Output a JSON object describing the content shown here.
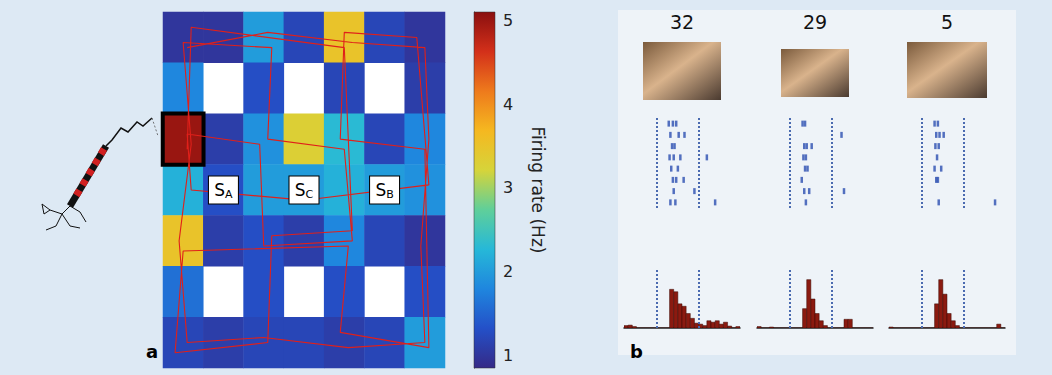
{
  "chart_data": [
    {
      "type": "heatmap",
      "label": "a",
      "tick_labels": false,
      "cells": [
        [
          1.0,
          1.0,
          2.0,
          1.2,
          3.5,
          1.2,
          1.0
        ],
        [
          1.8,
          null,
          1.3,
          null,
          1.2,
          null,
          1.1
        ],
        [
          5.0,
          1.1,
          1.9,
          3.3,
          2.3,
          1.2,
          1.8
        ],
        [
          2.2,
          1.3,
          2.0,
          2.0,
          2.2,
          2.0,
          1.9
        ],
        [
          3.5,
          1.1,
          1.3,
          1.1,
          1.8,
          1.2,
          1.0
        ],
        [
          1.6,
          null,
          1.3,
          null,
          1.3,
          null,
          1.3
        ],
        [
          1.2,
          1.1,
          1.2,
          1.2,
          1.1,
          1.2,
          2.0
        ]
      ],
      "colorbar": {
        "title": "Firing rate (Hz)",
        "range": [
          0.85,
          5.1
        ],
        "ticks": [
          1,
          2,
          3,
          4,
          5
        ]
      },
      "trajectory": {
        "color": "#e0201a",
        "points": [
          [
            0.1,
            0.2
          ],
          [
            2.1,
            -0.1
          ],
          [
            4.2,
            0.1
          ],
          [
            6.0,
            0.2
          ],
          [
            6.1,
            2.0
          ],
          [
            5.9,
            4.1
          ],
          [
            6.0,
            6.0
          ],
          [
            4.1,
            6.1
          ],
          [
            2.0,
            5.9
          ],
          [
            0.1,
            6.0
          ],
          [
            -0.1,
            4.0
          ],
          [
            0.2,
            2.1
          ],
          [
            0.0,
            0.1
          ],
          [
            2.2,
            0.2
          ],
          [
            2.1,
            2.0
          ],
          [
            4.0,
            2.2
          ],
          [
            4.2,
            4.0
          ],
          [
            2.0,
            4.1
          ],
          [
            1.9,
            2.1
          ],
          [
            0.1,
            1.9
          ],
          [
            0.2,
            3.0
          ],
          [
            3.0,
            3.2
          ],
          [
            6.1,
            2.9
          ],
          [
            5.8,
            0.0
          ],
          [
            4.0,
            -0.1
          ],
          [
            3.9,
            2.0
          ],
          [
            6.0,
            2.2
          ],
          [
            6.1,
            6.1
          ],
          [
            3.9,
            5.8
          ],
          [
            4.1,
            4.1
          ],
          [
            0.0,
            4.2
          ],
          [
            -0.2,
            6.2
          ],
          [
            2.1,
            6.0
          ],
          [
            2.2,
            3.9
          ],
          [
            4.2,
            3.8
          ],
          [
            4.0,
            0.2
          ],
          [
            0.2,
            -0.2
          ],
          [
            0.1,
            2.2
          ]
        ]
      },
      "annotations": [
        {
          "text": "S",
          "subscript": "A",
          "x": 1,
          "y": 3
        },
        {
          "text": "S",
          "subscript": "C",
          "x": 3,
          "y": 3
        },
        {
          "text": "S",
          "subscript": "B",
          "x": 5,
          "y": 3
        }
      ]
    },
    {
      "type": "bar",
      "label": "b",
      "tick_labels": false,
      "color": "#8b1a10",
      "xlim": [
        -400,
        1000
      ],
      "ylim": [
        0,
        12
      ],
      "panels": [
        {
          "title": "32",
          "stimulus": [
            0,
            500
          ],
          "bins": [
            -400,
            -350,
            -300,
            -250,
            -200,
            -150,
            -100,
            -50,
            0,
            50,
            100,
            150,
            200,
            250,
            300,
            350,
            400,
            450,
            500,
            550,
            600,
            650,
            700,
            750,
            800,
            850,
            900,
            950,
            1000
          ],
          "counts": [
            0.5,
            0.6,
            0.3,
            0,
            0,
            0,
            0,
            0,
            0,
            0,
            0,
            8,
            7.5,
            5,
            4.5,
            3,
            2,
            1,
            0.8,
            0.5,
            1.5,
            1.2,
            1.5,
            0.8,
            1.2,
            0.4,
            0,
            0.3
          ],
          "raster": [
            [
              140,
              190,
              230
            ],
            [
              160,
              260,
              330
            ],
            [
              180,
              210
            ],
            [
              150,
              200,
              280,
              600
            ],
            [
              170,
              250
            ],
            [
              190,
              230,
              320
            ],
            [
              200,
              450
            ],
            [
              160,
              220,
              700
            ]
          ]
        },
        {
          "title": "29",
          "stimulus": [
            0,
            500
          ],
          "bins": [
            -400,
            -350,
            -300,
            -250,
            -200,
            -150,
            -100,
            -50,
            0,
            50,
            100,
            150,
            200,
            250,
            300,
            350,
            400,
            450,
            500,
            550,
            600,
            650,
            700,
            750,
            800,
            850,
            900,
            950,
            1000
          ],
          "counts": [
            0.3,
            0,
            0,
            0.2,
            0,
            0,
            0,
            0,
            0,
            0,
            0,
            4,
            10,
            6,
            3,
            1.5,
            0.5,
            0,
            0,
            0,
            0,
            1.8,
            1.8,
            0,
            0,
            0,
            0,
            0
          ],
          "raster": [
            [
              150,
              180
            ],
            [
              620
            ],
            [
              170,
              200,
              260
            ],
            [
              160,
              190
            ],
            [
              180,
              210
            ],
            [
              140
            ],
            [
              170,
              230,
              650
            ],
            [
              190
            ]
          ]
        },
        {
          "title": "5",
          "stimulus": [
            0,
            500
          ],
          "bins": [
            -400,
            -350,
            -300,
            -250,
            -200,
            -150,
            -100,
            -50,
            0,
            50,
            100,
            150,
            200,
            250,
            300,
            350,
            400,
            450,
            500,
            550,
            600,
            650,
            700,
            750,
            800,
            850,
            900,
            950,
            1000
          ],
          "counts": [
            0.2,
            0,
            0,
            0,
            0,
            0,
            0,
            0,
            0,
            0,
            0,
            5,
            10,
            7,
            3,
            1.5,
            0.5,
            0,
            0,
            0,
            0,
            0,
            0,
            0,
            0,
            0,
            0.8,
            0
          ],
          "raster": [
            [
              150,
              190
            ],
            [
              170,
              210,
              260
            ],
            [
              160,
              200
            ],
            [
              180
            ],
            [
              150,
              230
            ],
            [
              170,
              190
            ],
            [],
            [
              200,
              880
            ]
          ]
        }
      ]
    }
  ]
}
